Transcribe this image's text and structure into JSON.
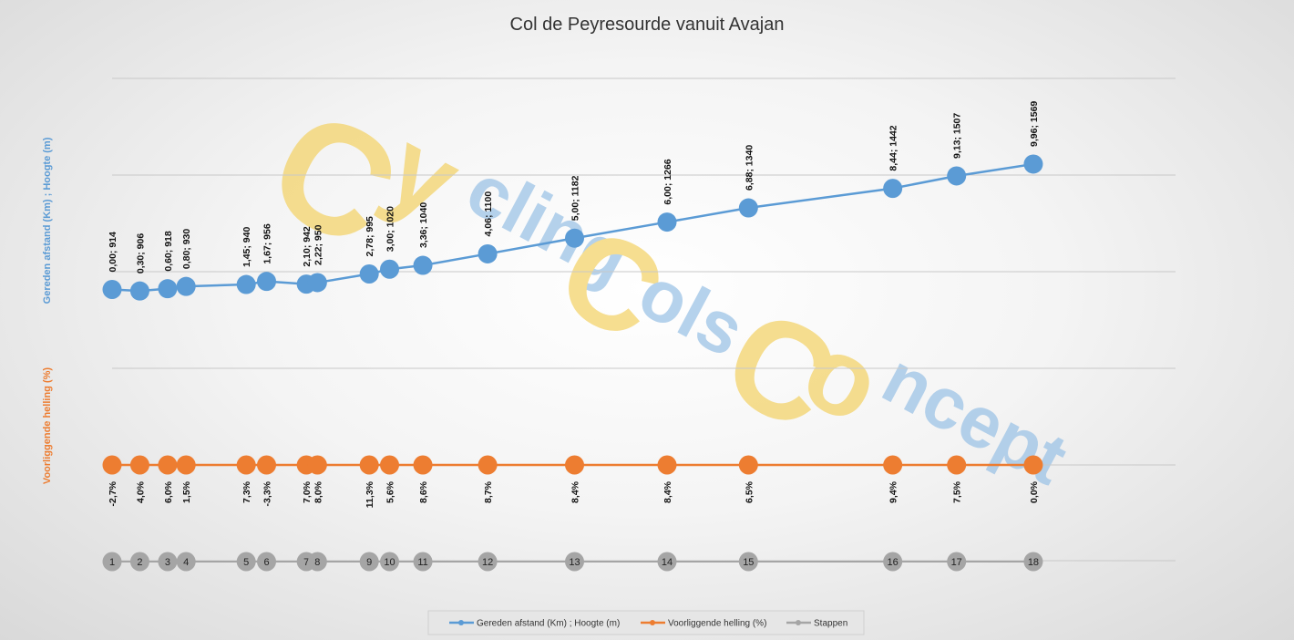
{
  "chart_data": {
    "type": "line",
    "title": "Col de Peyresourde vanuit Avajan",
    "ylabel_left_top": "Gereden afstand (Km) ;  Hoogte (m)",
    "ylabel_left_bottom": "Voorliggende helling (%)",
    "grid": true,
    "legend_position": "bottom",
    "colors": {
      "elevation": "#5b9bd5",
      "gradient": "#ed7d31",
      "steps": "#a5a5a5",
      "watermark_yellow": "#f3d36b",
      "watermark_blue": "#9dc3e6"
    },
    "watermark": "CyclingColsConcept",
    "series": [
      {
        "name": "Gereden afstand (Km) ; Hoogte (m)",
        "x": [
          0.0,
          0.3,
          0.6,
          0.8,
          1.45,
          1.67,
          2.1,
          2.22,
          2.78,
          3.0,
          3.36,
          4.06,
          5.0,
          6.0,
          6.88,
          8.44,
          9.13,
          9.96
        ],
        "y": [
          914,
          906,
          918,
          930,
          940,
          956,
          942,
          950,
          995,
          1020,
          1040,
          1100,
          1182,
          1266,
          1340,
          1442,
          1507,
          1569
        ],
        "labels": [
          "0,00; 914",
          "0,30; 906",
          "0,60; 918",
          "0,80; 930",
          "1,45; 940",
          "1,67; 956",
          "2,10; 942",
          "2,22; 950",
          "2,78; 995",
          "3,00; 1020",
          "3,36; 1040",
          "4,06; 1100",
          "5,00; 1182",
          "6,00; 1266",
          "6,88; 1340",
          "8,44; 1442",
          "9,13; 1507",
          "9,96; 1569"
        ]
      },
      {
        "name": "Voorliggende helling (%)",
        "labels": [
          "-2,7%",
          "4,0%",
          "6,0%",
          "1,5%",
          "7,3%",
          "-3,3%",
          "7,0%",
          "8,0%",
          "11,3%",
          "5,6%",
          "8,6%",
          "8,7%",
          "8,4%",
          "8,4%",
          "6,5%",
          "9,4%",
          "7,5%",
          "0,0%"
        ]
      },
      {
        "name": "Stappen",
        "labels": [
          "1",
          "2",
          "3",
          "4",
          "5",
          "6",
          "7",
          "8",
          "9",
          "10",
          "11",
          "12",
          "13",
          "14",
          "15",
          "16",
          "17",
          "18"
        ]
      }
    ]
  }
}
